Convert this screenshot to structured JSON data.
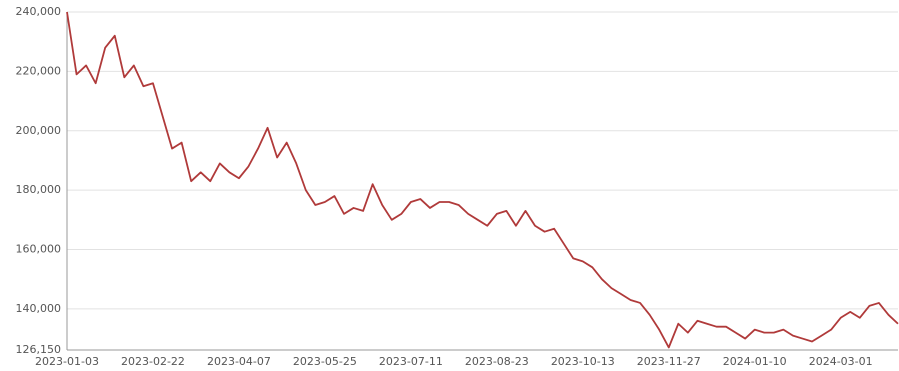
{
  "chart_data": {
    "type": "line",
    "categories": [
      "2023-01-03",
      null,
      null,
      null,
      null,
      null,
      null,
      null,
      null,
      "2023-02-22",
      null,
      null,
      null,
      null,
      null,
      null,
      null,
      null,
      "2023-04-07",
      null,
      null,
      null,
      null,
      null,
      null,
      null,
      null,
      "2023-05-25",
      null,
      null,
      null,
      null,
      null,
      null,
      null,
      null,
      "2023-07-11",
      null,
      null,
      null,
      null,
      null,
      null,
      null,
      null,
      "2023-08-23",
      null,
      null,
      null,
      null,
      null,
      null,
      null,
      null,
      "2023-10-13",
      null,
      null,
      null,
      null,
      null,
      null,
      null,
      null,
      "2023-11-27",
      null,
      null,
      null,
      null,
      null,
      null,
      null,
      null,
      "2024-01-10",
      null,
      null,
      null,
      null,
      null,
      null,
      null,
      null,
      "2024-03-01",
      null,
      null,
      null,
      null,
      null,
      null
    ],
    "values": [
      240000,
      219000,
      222000,
      216000,
      228000,
      232000,
      218000,
      222000,
      215000,
      216000,
      205000,
      194000,
      196000,
      183000,
      186000,
      183000,
      189000,
      186000,
      184000,
      188000,
      194000,
      201000,
      191000,
      196000,
      189000,
      180000,
      175000,
      176000,
      178000,
      172000,
      174000,
      173000,
      182000,
      175000,
      170000,
      172000,
      176000,
      177000,
      174000,
      176000,
      176000,
      175000,
      172000,
      170000,
      168000,
      172000,
      173000,
      168000,
      173000,
      168000,
      166000,
      167000,
      162000,
      157000,
      156000,
      154000,
      150000,
      147000,
      145000,
      143000,
      142000,
      138000,
      133000,
      127000,
      135000,
      132000,
      136000,
      135000,
      134000,
      134000,
      132000,
      130000,
      133000,
      132000,
      132000,
      133000,
      131000,
      130000,
      129000,
      131000,
      133000,
      137000,
      139000,
      137000,
      141000,
      142000,
      138000,
      135000
    ],
    "color": "#b03a3a",
    "ylim": [
      126150,
      240000
    ],
    "yticks": [
      {
        "value": 126150,
        "label": "126,150"
      },
      {
        "value": 140000,
        "label": "140,000"
      },
      {
        "value": 160000,
        "label": "160,000"
      },
      {
        "value": 180000,
        "label": "180,000"
      },
      {
        "value": 200000,
        "label": "200,000"
      },
      {
        "value": 220000,
        "label": "220,000"
      },
      {
        "value": 240000,
        "label": "240,000"
      }
    ],
    "grid": true
  }
}
